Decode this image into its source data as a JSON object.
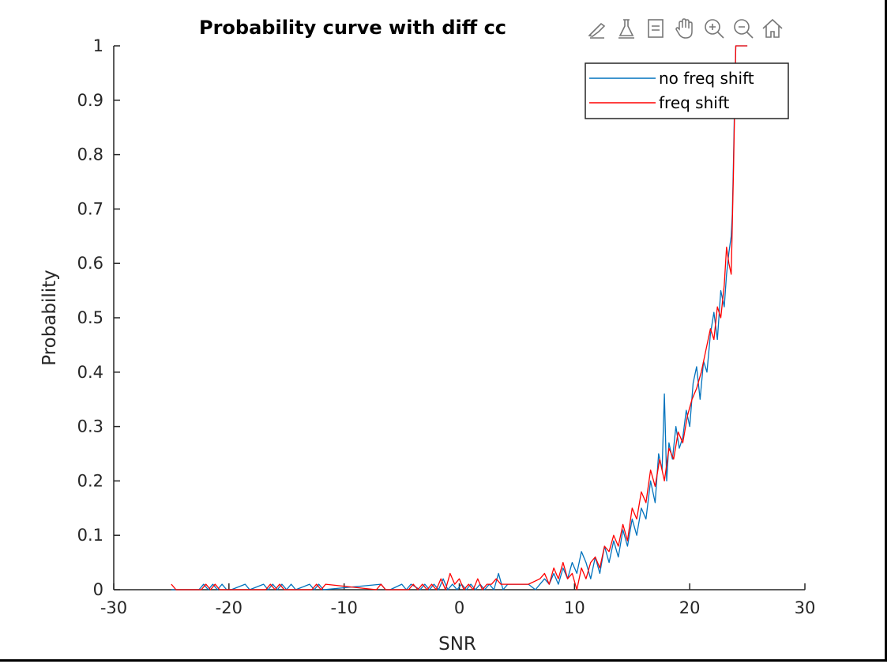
{
  "chart_data": {
    "type": "line",
    "title": "Probability curve with diff cc",
    "xlabel": "SNR",
    "ylabel": "Probability",
    "xlim": [
      -30,
      30
    ],
    "ylim": [
      0,
      1
    ],
    "xticks": [
      "-30",
      "-20",
      "-10",
      "0",
      "10",
      "20",
      "30"
    ],
    "yticks": [
      "0",
      "0.1",
      "0.2",
      "0.3",
      "0.4",
      "0.5",
      "0.6",
      "0.7",
      "0.8",
      "0.9",
      "1"
    ],
    "grid": false,
    "legend_position": "top-right",
    "series": [
      {
        "name": "no freq shift",
        "color": "#0072BD",
        "x": [
          -25,
          -22.6,
          -22.2,
          -21.8,
          -21.4,
          -21.0,
          -20.6,
          -20.2,
          -19.8,
          -18.6,
          -18.2,
          -17.0,
          -16.6,
          -16.2,
          -15.8,
          -15.4,
          -15.0,
          -14.6,
          -14.2,
          -13.0,
          -12.6,
          -12.2,
          -11.8,
          -6.8,
          -6.4,
          -6.0,
          -5.0,
          -4.6,
          -4.2,
          -3.4,
          -3.0,
          -2.6,
          -2.2,
          -1.8,
          -1.4,
          -1.0,
          -0.6,
          -0.2,
          0.2,
          0.6,
          1.0,
          1.4,
          1.8,
          2.2,
          2.6,
          3.0,
          3.4,
          3.8,
          4.2,
          4.6,
          5.0,
          6.0,
          6.6,
          7.0,
          7.4,
          7.8,
          8.2,
          8.6,
          9.0,
          9.4,
          9.8,
          10.2,
          10.6,
          11.0,
          11.4,
          11.8,
          12.2,
          12.6,
          13.0,
          13.4,
          13.8,
          14.2,
          14.6,
          15.0,
          15.4,
          15.8,
          16.2,
          16.6,
          17.0,
          17.3,
          17.6,
          17.8,
          18.0,
          18.2,
          18.5,
          18.8,
          19.1,
          19.4,
          19.7,
          20.0,
          20.3,
          20.6,
          20.9,
          21.2,
          21.5,
          21.8,
          22.1,
          22.4,
          22.7,
          23.0,
          23.2,
          23.4,
          23.6,
          23.7,
          23.8,
          23.9,
          24.0,
          24.1,
          24.2,
          25.0
        ],
        "y": [
          0,
          0,
          0.01,
          0,
          0.01,
          0,
          0.01,
          0,
          0,
          0.01,
          0,
          0.01,
          0,
          0.01,
          0,
          0.01,
          0,
          0.01,
          0,
          0.01,
          0,
          0.01,
          0,
          0.01,
          0,
          0,
          0.01,
          0,
          0.01,
          0,
          0.01,
          0,
          0.01,
          0,
          0.02,
          0,
          0.01,
          0,
          0.01,
          0,
          0.01,
          0,
          0.01,
          0,
          0.01,
          0,
          0.03,
          0,
          0.01,
          0.01,
          0.01,
          0.01,
          0,
          0.01,
          0.02,
          0.01,
          0.03,
          0.01,
          0.04,
          0.02,
          0.05,
          0.03,
          0.07,
          0.05,
          0.02,
          0.06,
          0.03,
          0.08,
          0.05,
          0.09,
          0.06,
          0.11,
          0.08,
          0.13,
          0.1,
          0.15,
          0.13,
          0.2,
          0.16,
          0.25,
          0.22,
          0.36,
          0.2,
          0.27,
          0.24,
          0.3,
          0.26,
          0.28,
          0.33,
          0.3,
          0.38,
          0.41,
          0.35,
          0.42,
          0.4,
          0.47,
          0.51,
          0.46,
          0.55,
          0.52,
          0.58,
          0.62,
          0.65,
          0.69,
          0.79,
          0.9,
          1,
          1,
          1,
          1
        ],
        "visible_values_note": ""
      },
      {
        "name": "freq shift",
        "color": "#FF0000",
        "x": [
          -25,
          -24.6,
          -24.2,
          -22.4,
          -22.0,
          -21.6,
          -21.2,
          -20.8,
          -16.8,
          -16.4,
          -16.0,
          -15.6,
          -15.2,
          -14.8,
          -12.8,
          -12.4,
          -12.0,
          -11.6,
          -7.2,
          -6.8,
          -6.4,
          -4.4,
          -4.0,
          -3.6,
          -3.2,
          -2.8,
          -2.4,
          -2.0,
          -1.6,
          -1.2,
          -0.8,
          -0.4,
          0,
          0.4,
          0.8,
          1.2,
          1.6,
          2.0,
          2.4,
          2.8,
          3.2,
          3.6,
          4.0,
          6.0,
          7.0,
          7.4,
          7.8,
          8.2,
          8.6,
          9.0,
          9.4,
          9.8,
          10.2,
          10.6,
          11.0,
          11.4,
          11.8,
          12.2,
          12.6,
          13.0,
          13.4,
          13.8,
          14.2,
          14.6,
          15.0,
          15.4,
          15.8,
          16.2,
          16.6,
          17.0,
          17.4,
          17.8,
          18.2,
          18.6,
          19.0,
          19.4,
          19.8,
          20.2,
          20.6,
          21.0,
          21.4,
          21.8,
          22.1,
          22.4,
          22.7,
          23.0,
          23.2,
          23.4,
          23.6,
          23.8,
          24.0,
          24.2,
          24.4,
          25.0
        ],
        "y": [
          0.01,
          0,
          0,
          0,
          0.01,
          0,
          0.01,
          0,
          0,
          0.01,
          0,
          0.01,
          0,
          0,
          0,
          0.01,
          0,
          0.01,
          0,
          0.01,
          0,
          0,
          0.01,
          0,
          0.01,
          0,
          0.01,
          0,
          0.02,
          0,
          0.03,
          0.01,
          0.02,
          0,
          0.01,
          0,
          0.02,
          0,
          0.01,
          0.01,
          0.02,
          0.01,
          0.01,
          0.01,
          0.02,
          0.03,
          0.01,
          0.04,
          0.02,
          0.05,
          0.02,
          0.03,
          0,
          0.04,
          0.02,
          0.05,
          0.06,
          0.04,
          0.08,
          0.07,
          0.1,
          0.08,
          0.12,
          0.09,
          0.15,
          0.13,
          0.18,
          0.16,
          0.22,
          0.19,
          0.24,
          0.2,
          0.26,
          0.24,
          0.29,
          0.27,
          0.32,
          0.35,
          0.37,
          0.4,
          0.44,
          0.48,
          0.46,
          0.52,
          0.5,
          0.56,
          0.63,
          0.6,
          0.58,
          0.77,
          1,
          1,
          1,
          1
        ],
        "visible_values_note": ""
      }
    ]
  },
  "toolbar": {
    "icons": [
      "brush-icon",
      "data-cursor-icon",
      "legend-toggle-icon",
      "pan-hand-icon",
      "zoom-in-icon",
      "zoom-out-icon",
      "home-icon"
    ]
  }
}
